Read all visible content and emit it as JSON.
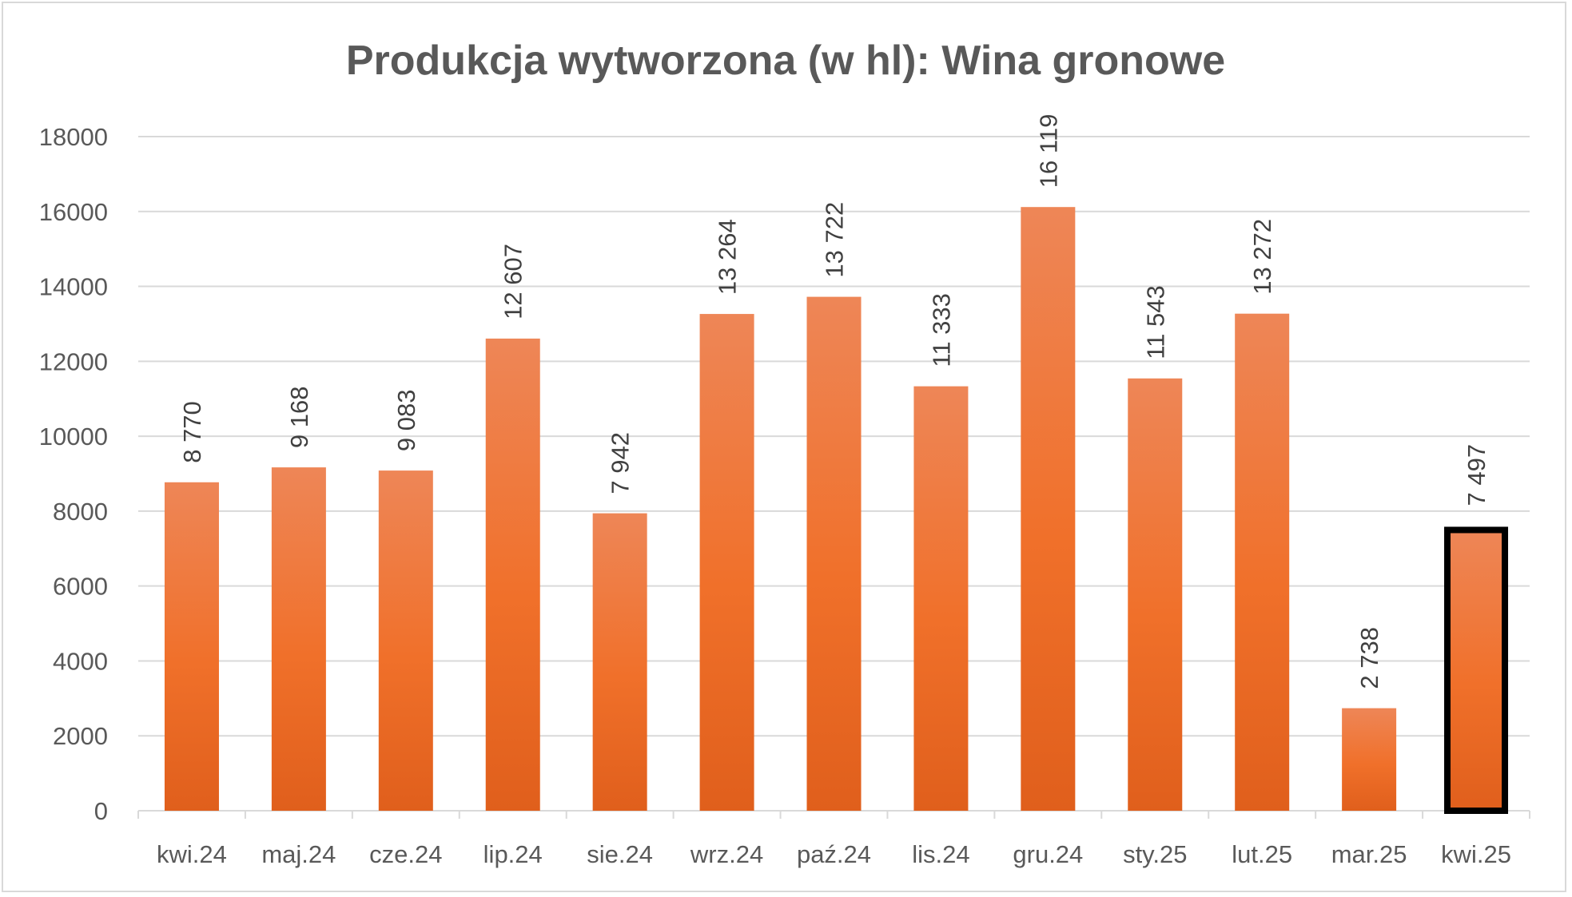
{
  "chart_data": {
    "type": "bar",
    "title": "Produkcja wytworzona (w hl): Wina gronowe",
    "xlabel": "",
    "ylabel": "",
    "categories": [
      "kwi.24",
      "maj.24",
      "cze.24",
      "lip.24",
      "sie.24",
      "wrz.24",
      "paź.24",
      "lis.24",
      "gru.24",
      "sty.25",
      "lut.25",
      "mar.25",
      "kwi.25"
    ],
    "values": [
      8770,
      9168,
      9083,
      12607,
      7942,
      13264,
      13722,
      11333,
      16119,
      11543,
      13272,
      2738,
      7497
    ],
    "data_labels": [
      "8 770",
      "9 168",
      "9 083",
      "12 607",
      "7 942",
      "13 264",
      "13 722",
      "11 333",
      "16 119",
      "11 543",
      "13 272",
      "2 738",
      "7 497"
    ],
    "ylim": [
      0,
      18000
    ],
    "yticks": [
      "0",
      "2000",
      "4000",
      "6000",
      "8000",
      "10000",
      "12000",
      "14000",
      "16000",
      "18000"
    ],
    "grid": true,
    "legend": "none",
    "bar_color": "#EF7331",
    "highlighted_category": "kwi.25",
    "highlight_outline_color": "#000000"
  }
}
